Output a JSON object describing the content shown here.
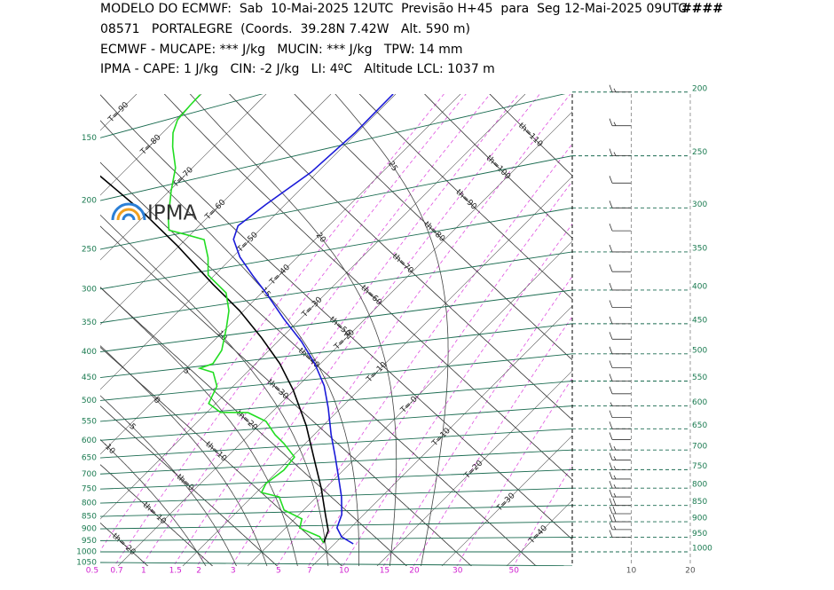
{
  "chart_data": {
    "type": "skew-t",
    "header_lines": [
      "MODELO DO ECMWF:  Sab  10-Mai-2025 12UTC  Previsão H+45  para  Seg 12-Mai-2025 09UTC",
      "08571   PORTALEGRE  (Coords.  39.28N 7.42W   Alt. 590 m)",
      "ECMWF - MUCAPE: *** J/kg   MUCIN: *** J/kg   TPW: 14 mm",
      "IPMA - CAPE: 1 J/kg   CIN: -2 J/kg   LI: 4ºC   Altitude LCL: 1037 m"
    ],
    "header_code": "####",
    "logo_text": "IPMA",
    "pressure_ticks": [
      150,
      200,
      250,
      300,
      350,
      400,
      450,
      500,
      550,
      600,
      650,
      700,
      750,
      800,
      850,
      900,
      950,
      1000,
      1050
    ],
    "pressure_ticks_right": [
      200,
      250,
      300,
      350,
      400,
      450,
      500,
      550,
      600,
      650,
      700,
      750,
      800,
      850,
      900,
      950,
      1000
    ],
    "isotherm_labels": [
      {
        "value": -90,
        "label": "T=-90"
      },
      {
        "value": -80,
        "label": "T=-80"
      },
      {
        "value": -70,
        "label": "T=-70"
      },
      {
        "value": -60,
        "label": "T=-60"
      },
      {
        "value": -50,
        "label": "T=-50"
      },
      {
        "value": -40,
        "label": "T=-40"
      },
      {
        "value": -30,
        "label": "T=-30"
      },
      {
        "value": -20,
        "label": "T=-20"
      },
      {
        "value": -10,
        "label": "T=-10"
      },
      {
        "value": 0,
        "label": "T=-0"
      },
      {
        "value": 10,
        "label": "T=10"
      },
      {
        "value": 20,
        "label": "T=20"
      },
      {
        "value": 30,
        "label": "T=30"
      },
      {
        "value": 40,
        "label": "T=40"
      }
    ],
    "dry_adiabat_labels": [
      {
        "value": -20,
        "label": "th=-20"
      },
      {
        "value": -10,
        "label": "th=-10"
      },
      {
        "value": 0,
        "label": "th=0"
      },
      {
        "value": 10,
        "label": "th=10"
      },
      {
        "value": 20,
        "label": "th=20"
      },
      {
        "value": 30,
        "label": "th=30"
      },
      {
        "value": 40,
        "label": "th=40"
      },
      {
        "value": 50,
        "label": "th=50"
      },
      {
        "value": 60,
        "label": "th=60"
      },
      {
        "value": 70,
        "label": "th=70"
      },
      {
        "value": 80,
        "label": "th=80"
      },
      {
        "value": 90,
        "label": "th=90"
      },
      {
        "value": 100,
        "label": "th=100"
      },
      {
        "value": 110,
        "label": "th=110"
      }
    ],
    "moist_adiabat_labels": [
      25,
      20,
      15,
      10,
      5,
      0,
      -5,
      -10
    ],
    "mixing_ratio_ticks": [
      0.5,
      0.7,
      1,
      1.5,
      2,
      3,
      5,
      7,
      10,
      15,
      20,
      30,
      50
    ],
    "series": [
      {
        "color": "#1a1ad8",
        "pressure": [
          172,
          193,
          217,
          238,
          254,
          268,
          290,
          316,
          343,
          386,
          427,
          470,
          515,
          564,
          627,
          686,
          750,
          804,
          863,
          909,
          942,
          969
        ],
        "temperature": [
          -50.4,
          -50.3,
          -51,
          -53,
          -54,
          -52.6,
          -48.9,
          -44.1,
          -39.3,
          -32.5,
          -26.3,
          -20.8,
          -16,
          -11.9,
          -7.4,
          -3.3,
          0.7,
          3.8,
          6.6,
          7.9,
          10,
          12.9
        ]
      },
      {
        "color": "#000000",
        "pressure": [
          178,
          220,
          264,
          319,
          363,
          411,
          462,
          518,
          601,
          695,
          774,
          862,
          919,
          966
        ],
        "temperature": [
          -83.2,
          -70.8,
          -60.1,
          -48.9,
          -40.7,
          -33.2,
          -26.3,
          -20.1,
          -12.6,
          -5.8,
          -0.7,
          4.1,
          7,
          8.2
        ]
      },
      {
        "color": "#22dd22",
        "pressure": [
          140,
          145,
          152,
          160,
          170,
          187,
          206,
          231,
          244,
          253,
          262,
          284,
          306,
          334,
          361,
          388,
          425,
          448,
          454,
          465,
          494,
          530,
          553,
          559,
          583,
          618,
          642,
          680,
          716,
          754,
          782,
          798,
          843,
          875,
          908,
          941,
          965
        ],
        "temperature": [
          -80.1,
          -80,
          -79.7,
          -78.4,
          -76.3,
          -72.6,
          -69.7,
          -66,
          -64,
          -60.5,
          -57.1,
          -53.7,
          -51,
          -45.5,
          -42.3,
          -40,
          -37.3,
          -36.6,
          -37.9,
          -35.2,
          -32.5,
          -31.1,
          -27.9,
          -23.6,
          -19.5,
          -16,
          -13.3,
          -9.6,
          -9.2,
          -9.9,
          -9.2,
          -5.8,
          -3,
          1.1,
          2.2,
          6.6,
          8.2
        ]
      }
    ],
    "wind": {
      "pressure": [
        200,
        225,
        250,
        275,
        300,
        325,
        350,
        375,
        400,
        425,
        450,
        475,
        500,
        525,
        550,
        575,
        600,
        625,
        650,
        675,
        700,
        725,
        750,
        775,
        800,
        825,
        850,
        875,
        900,
        925,
        950
      ],
      "speed": [
        15,
        15,
        15,
        10,
        10,
        10,
        10,
        10,
        10,
        10,
        10,
        10,
        10,
        10,
        10,
        10,
        5,
        10,
        10,
        10,
        15,
        15,
        15,
        15,
        15,
        15,
        20,
        20,
        20,
        15,
        10
      ]
    },
    "wind_xlim": [
      0,
      20
    ],
    "wind_xticks": [
      10,
      20
    ]
  }
}
